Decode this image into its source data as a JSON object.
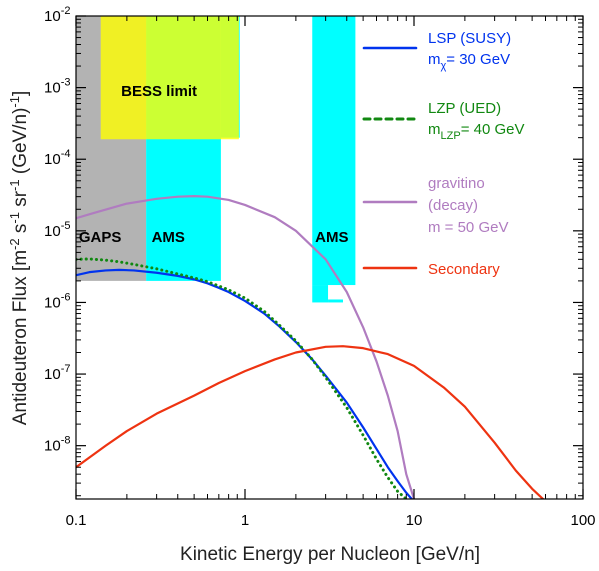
{
  "chart_data": {
    "type": "line",
    "xlabel": "Kinetic Energy per Nucleon [GeV/n]",
    "ylabel": "Antideuteron Flux [m-2 s-1 sr-1 (GeV/n)-1]",
    "ylabel_parts": [
      "Antideuteron Flux [m",
      "-2",
      " s",
      "-1",
      " sr",
      "-1",
      " (GeV/n)",
      "-1",
      "]"
    ],
    "xscale": "log",
    "yscale": "log",
    "xlim": [
      0.1,
      100
    ],
    "ylim": [
      1.8e-09,
      0.01
    ],
    "x_ticks": [
      {
        "value": 0.1,
        "label": "0.1"
      },
      {
        "value": 1,
        "label": "1"
      },
      {
        "value": 10,
        "label": "10"
      },
      {
        "value": 100,
        "label": "100"
      }
    ],
    "y_ticks": [
      {
        "value": 1e-08,
        "base": "10",
        "exp": "-8"
      },
      {
        "value": 1e-07,
        "base": "10",
        "exp": "-7"
      },
      {
        "value": 1e-06,
        "base": "10",
        "exp": "-6"
      },
      {
        "value": 1e-05,
        "base": "10",
        "exp": "-5"
      },
      {
        "value": 0.0001,
        "base": "10",
        "exp": "-4"
      },
      {
        "value": 0.001,
        "base": "10",
        "exp": "-3"
      },
      {
        "value": 0.01,
        "base": "10",
        "exp": "-2"
      }
    ],
    "grid": false,
    "legend_position": "right",
    "regions": [
      {
        "label": "GAPS",
        "x": [
          0.1,
          0.26
        ],
        "y": [
          2e-06,
          0.01
        ],
        "color": "#b3b3b3"
      },
      {
        "label": "AMS",
        "x": [
          0.26,
          0.72
        ],
        "y": [
          2e-06,
          0.01
        ],
        "color": "#00ffff"
      },
      {
        "label": "",
        "x": [
          0.72,
          0.93
        ],
        "y": [
          0.0002,
          0.01
        ],
        "color": "#00ffff"
      },
      {
        "label": "AMS",
        "x": [
          2.5,
          4.5
        ],
        "y": [
          1.75e-06,
          0.01
        ],
        "color": "#00ffff"
      },
      {
        "label": "",
        "x": [
          2.5,
          3.1
        ],
        "y": [
          1e-06,
          1.75e-06
        ],
        "color": "#00ffff"
      },
      {
        "label": "",
        "x": [
          3.1,
          3.8
        ],
        "y": [
          1e-06,
          1.1e-06
        ],
        "color": "#00ffff"
      },
      {
        "label": "BESS limit",
        "x": [
          0.14,
          0.92
        ],
        "y": [
          0.00019,
          0.01
        ],
        "color": "#ffff00",
        "opacity": 0.8
      }
    ],
    "series": [
      {
        "name": "LSP (SUSY)",
        "name_sub": "m",
        "name_sub_index": "χ",
        "name_sub_value": "= 30 GeV",
        "color": "#0033ee",
        "dash": "solid",
        "x": [
          0.1,
          0.12,
          0.15,
          0.18,
          0.22,
          0.3,
          0.4,
          0.5,
          0.6,
          0.7,
          0.8,
          1.0,
          1.3,
          1.6,
          2.0,
          2.5,
          3.0,
          4.0,
          5.0,
          6.0,
          7.0,
          8.0,
          9.0,
          9.7
        ],
        "y": [
          2.4e-06,
          2.65e-06,
          2.8e-06,
          2.85e-06,
          2.8e-06,
          2.6e-06,
          2.35e-06,
          2.1e-06,
          1.85e-06,
          1.6e-06,
          1.4e-06,
          1.05e-06,
          7e-07,
          4.6e-07,
          2.8e-07,
          1.6e-07,
          9.5e-08,
          4e-08,
          1.8e-08,
          9e-09,
          5e-09,
          3.2e-09,
          2.2e-09,
          1.8e-09
        ]
      },
      {
        "name": "LZP (UED)",
        "name_sub": "m",
        "name_sub_index": "LZP",
        "name_sub_value": "= 40 GeV",
        "color": "#118811",
        "dash": "dotted",
        "x": [
          0.1,
          0.12,
          0.15,
          0.18,
          0.22,
          0.3,
          0.4,
          0.5,
          0.6,
          0.7,
          0.8,
          1.0,
          1.3,
          1.6,
          2.0,
          2.5,
          3.0,
          4.0,
          5.0,
          6.0,
          7.0,
          8.0,
          9.0
        ],
        "y": [
          4e-06,
          4.05e-06,
          3.9e-06,
          3.7e-06,
          3.4e-06,
          2.95e-06,
          2.5e-06,
          2.2e-06,
          1.95e-06,
          1.7e-06,
          1.5e-06,
          1.15e-06,
          7.5e-07,
          4.8e-07,
          2.9e-07,
          1.6e-07,
          9e-08,
          3.4e-08,
          1.4e-08,
          6.5e-09,
          3.6e-09,
          2.3e-09,
          1.8e-09
        ]
      },
      {
        "name": "gravitino",
        "name_line2": "(decay)",
        "name_line3": "m = 50 GeV",
        "color": "#b07cc0",
        "dash": "solid",
        "x": [
          0.1,
          0.13,
          0.2,
          0.3,
          0.4,
          0.5,
          0.6,
          0.8,
          1.0,
          1.5,
          2.0,
          3.0,
          4.0,
          5.0,
          6.0,
          7.0,
          8.0,
          9.0,
          10.0
        ],
        "y": [
          1.5e-05,
          1.8e-05,
          2.4e-05,
          2.8e-05,
          3e-05,
          3.05e-05,
          3e-05,
          2.7e-05,
          2.3e-05,
          1.55e-05,
          1e-05,
          4e-06,
          1.4e-06,
          4.5e-07,
          1.5e-07,
          5e-08,
          1.6e-08,
          4e-09,
          1.8e-09
        ]
      },
      {
        "name": "Secondary",
        "color": "#ee3311",
        "dash": "solid",
        "x": [
          0.1,
          0.15,
          0.2,
          0.3,
          0.5,
          0.7,
          1.0,
          1.5,
          2.0,
          3.0,
          3.8,
          5.0,
          7.0,
          10.0,
          15.0,
          20.0,
          30.0,
          40.0,
          50.0,
          58.0
        ],
        "y": [
          5e-09,
          1e-08,
          1.6e-08,
          2.8e-08,
          5e-08,
          7.5e-08,
          1.1e-07,
          1.6e-07,
          2e-07,
          2.4e-07,
          2.45e-07,
          2.3e-07,
          1.9e-07,
          1.3e-07,
          6.5e-08,
          3.5e-08,
          1.1e-08,
          4.5e-09,
          2.5e-09,
          1.8e-09
        ]
      }
    ]
  }
}
